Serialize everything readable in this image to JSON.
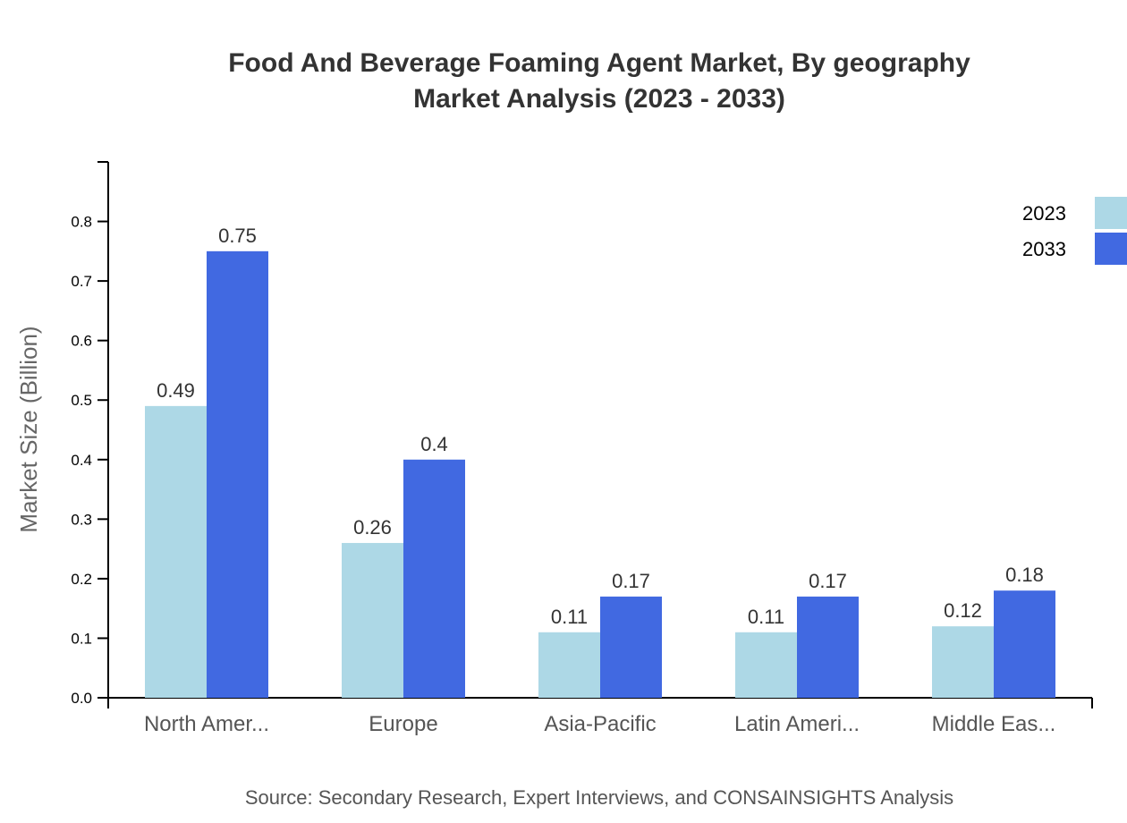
{
  "chart_data": {
    "type": "bar",
    "title": "Food And Beverage Foaming Agent Market, By geography",
    "subtitle": "Market Analysis (2023 - 2033)",
    "xlabel": "",
    "ylabel": "Market Size (Billion)",
    "categories": [
      "North Amer...",
      "Europe",
      "Asia-Pacific",
      "Latin Ameri...",
      "Middle Eas..."
    ],
    "series": [
      {
        "name": "2023",
        "color": "#add8e6",
        "values": [
          0.49,
          0.26,
          0.11,
          0.11,
          0.12
        ]
      },
      {
        "name": "2033",
        "color": "#4169e1",
        "values": [
          0.75,
          0.4,
          0.17,
          0.17,
          0.18
        ]
      }
    ],
    "yticks": [
      "0.0",
      "0.1",
      "0.2",
      "0.3",
      "0.4",
      "0.5",
      "0.6",
      "0.7",
      "0.8"
    ],
    "ylim": [
      0,
      0.9
    ],
    "grid": false,
    "legend_position": "top-right"
  },
  "source": "Source: Secondary Research, Expert Interviews, and CONSAINSIGHTS Analysis"
}
